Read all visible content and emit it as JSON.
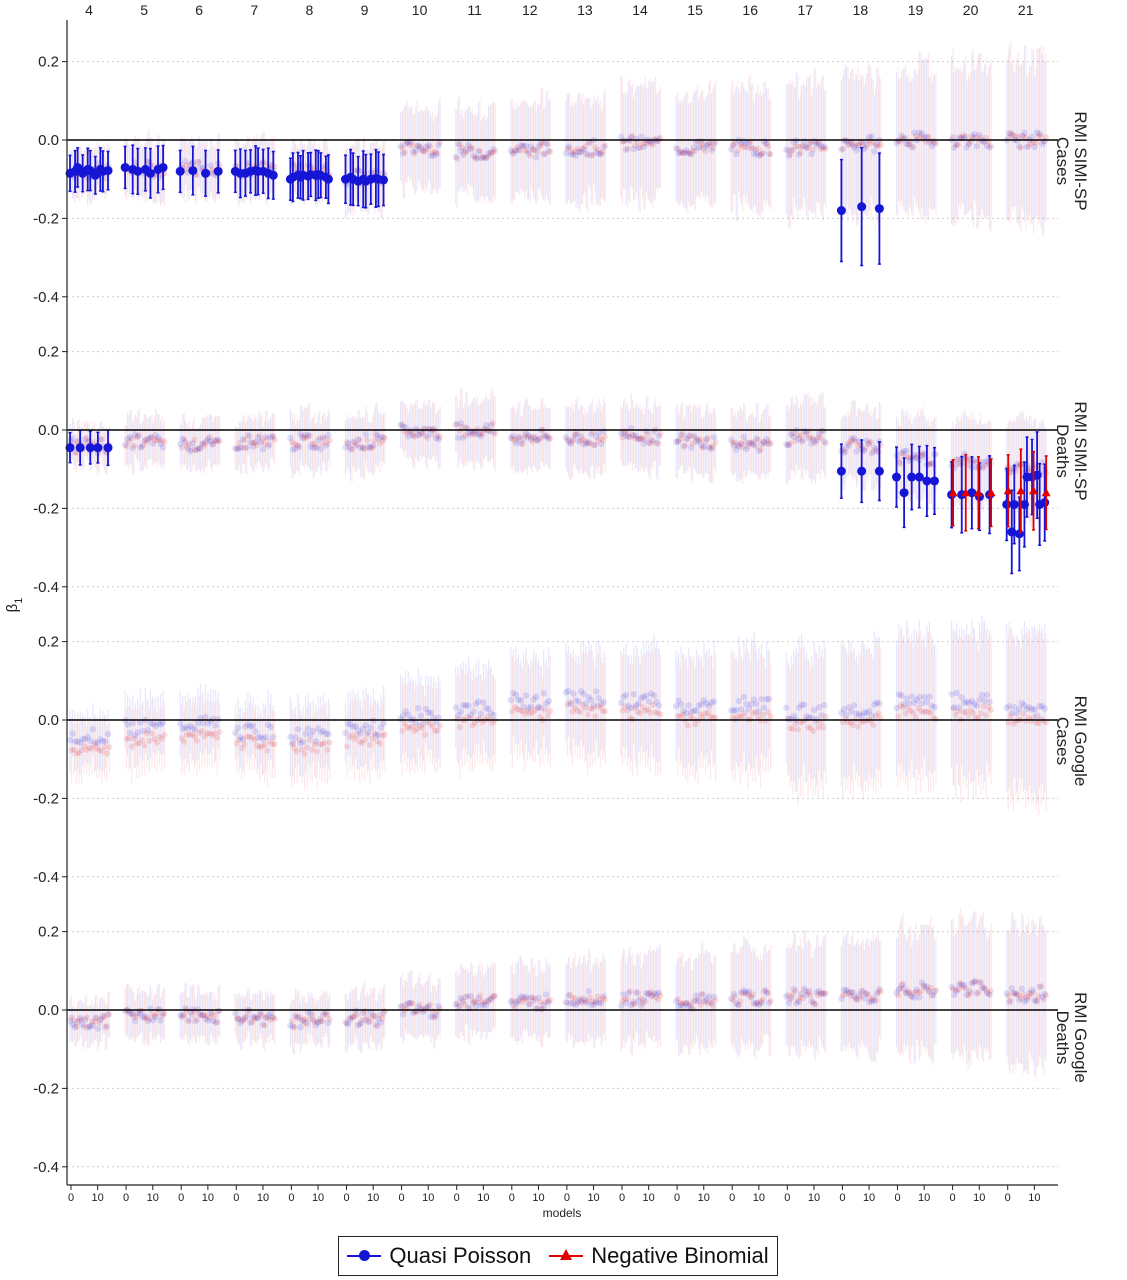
{
  "chart_data": {
    "type": "scatter",
    "title": "",
    "xlabel": "models",
    "ylabel": "β1",
    "x_ticks": [
      "0",
      "10"
    ],
    "facet_columns": [
      "4",
      "5",
      "6",
      "7",
      "8",
      "9",
      "10",
      "11",
      "12",
      "13",
      "14",
      "15",
      "16",
      "17",
      "18",
      "19",
      "20",
      "21"
    ],
    "facet_rows": [
      "RMI SIMI-SP Cases",
      "RMI SIMI-SP Deaths",
      "RMI Google Cases",
      "RMI Google Deaths"
    ],
    "y_ticks": [
      0.2,
      0.0,
      -0.2,
      -0.4
    ],
    "y_tick_labels": [
      "0.2",
      "0.0",
      "-0.2",
      "-0.4"
    ],
    "ylim": [
      -0.42,
      0.3
    ],
    "legend_position": "bottom",
    "grid": "horizontal dotted",
    "colors": {
      "quasi_poisson": "#1515d6",
      "negative_binomial": "#e00000",
      "zero_line": "#000000",
      "grid": "#cccccc"
    },
    "series": [
      {
        "name": "Quasi Poisson",
        "marker": "circle"
      },
      {
        "name": "Negative Binomial",
        "marker": "triangle"
      }
    ],
    "panel_level": {
      "RMI SIMI-SP Cases": [
        -0.08,
        -0.075,
        -0.07,
        -0.075,
        -0.08,
        -0.095,
        -0.02,
        -0.03,
        -0.025,
        -0.02,
        -0.01,
        -0.02,
        -0.02,
        -0.02,
        -0.01,
        0.0,
        0.0,
        0.0
      ],
      "RMI SIMI-SP Deaths": [
        -0.04,
        -0.03,
        -0.035,
        -0.03,
        -0.03,
        -0.03,
        -0.005,
        0.0,
        -0.02,
        -0.02,
        -0.015,
        -0.03,
        -0.035,
        -0.02,
        -0.04,
        -0.07,
        -0.08,
        -0.1
      ],
      "RMI Google Cases": [
        -0.04,
        -0.02,
        -0.01,
        -0.03,
        -0.04,
        -0.02,
        0.01,
        0.03,
        0.05,
        0.055,
        0.05,
        0.035,
        0.04,
        0.02,
        0.03,
        0.05,
        0.05,
        0.03
      ],
      "RMI Google Deaths": [
        -0.03,
        -0.01,
        -0.015,
        -0.02,
        -0.025,
        -0.02,
        0.0,
        0.025,
        0.02,
        0.03,
        0.03,
        0.02,
        0.03,
        0.035,
        0.04,
        0.05,
        0.055,
        0.04
      ]
    },
    "panel_halfwidth": {
      "RMI SIMI-SP Cases": [
        0.06,
        0.07,
        0.07,
        0.07,
        0.07,
        0.08,
        0.1,
        0.11,
        0.12,
        0.13,
        0.14,
        0.14,
        0.15,
        0.16,
        0.17,
        0.18,
        0.19,
        0.2
      ],
      "RMI SIMI-SP Deaths": [
        0.05,
        0.06,
        0.06,
        0.06,
        0.07,
        0.07,
        0.07,
        0.08,
        0.08,
        0.08,
        0.08,
        0.08,
        0.08,
        0.09,
        0.09,
        0.1,
        0.11,
        0.12
      ],
      "RMI Google Cases": [
        0.07,
        0.08,
        0.08,
        0.08,
        0.09,
        0.09,
        0.1,
        0.11,
        0.12,
        0.13,
        0.14,
        0.14,
        0.15,
        0.16,
        0.17,
        0.18,
        0.19,
        0.2
      ],
      "RMI Google Deaths": [
        0.05,
        0.06,
        0.06,
        0.06,
        0.06,
        0.07,
        0.07,
        0.08,
        0.09,
        0.1,
        0.11,
        0.11,
        0.12,
        0.13,
        0.14,
        0.15,
        0.16,
        0.17
      ]
    },
    "highlighted_points": [
      {
        "panel": "RMI SIMI-SP Cases",
        "column": "4",
        "series": "Quasi Poisson",
        "y": [
          -0.085,
          -0.08,
          -0.07,
          -0.085,
          -0.075,
          -0.078,
          -0.09,
          -0.075,
          -0.08,
          -0.078
        ]
      },
      {
        "panel": "RMI SIMI-SP Cases",
        "column": "5",
        "series": "Quasi Poisson",
        "y": [
          -0.07,
          -0.075,
          -0.08,
          -0.075,
          -0.085,
          -0.075,
          -0.07
        ]
      },
      {
        "panel": "RMI SIMI-SP Cases",
        "column": "6",
        "series": "Quasi Poisson",
        "y": [
          -0.08,
          -0.078,
          -0.085,
          -0.08
        ]
      },
      {
        "panel": "RMI SIMI-SP Cases",
        "column": "7",
        "series": "Quasi Poisson",
        "y": [
          -0.08,
          -0.085,
          -0.085,
          -0.08,
          -0.078,
          -0.08,
          -0.08,
          -0.085,
          -0.09
        ]
      },
      {
        "panel": "RMI SIMI-SP Cases",
        "column": "8",
        "series": "Quasi Poisson",
        "y": [
          -0.1,
          -0.095,
          -0.09,
          -0.095,
          -0.09,
          -0.092,
          -0.088,
          -0.09,
          -0.088,
          -0.09,
          -0.095,
          -0.1
        ]
      },
      {
        "panel": "RMI SIMI-SP Cases",
        "column": "9",
        "series": "Quasi Poisson",
        "y": [
          -0.1,
          -0.095,
          -0.1,
          -0.105,
          -0.1,
          -0.105,
          -0.1,
          -0.098,
          -0.1,
          -0.102
        ]
      },
      {
        "panel": "RMI SIMI-SP Cases",
        "column": "18",
        "series": "Quasi Poisson",
        "y": [
          -0.18,
          -0.17,
          -0.175
        ]
      },
      {
        "panel": "RMI SIMI-SP Deaths",
        "column": "4",
        "series": "Quasi Poisson",
        "y": [
          -0.045,
          -0.045,
          -0.045,
          -0.045,
          -0.045
        ]
      },
      {
        "panel": "RMI SIMI-SP Deaths",
        "column": "18",
        "series": "Quasi Poisson",
        "y": [
          -0.105,
          -0.105,
          -0.105
        ]
      },
      {
        "panel": "RMI SIMI-SP Deaths",
        "column": "19",
        "series": "Quasi Poisson",
        "y": [
          -0.12,
          -0.16,
          -0.12,
          -0.12,
          -0.13,
          -0.13
        ]
      },
      {
        "panel": "RMI SIMI-SP Deaths",
        "column": "20",
        "series": "Quasi Poisson",
        "y": [
          -0.165,
          -0.165,
          -0.16,
          -0.17,
          -0.165
        ]
      },
      {
        "panel": "RMI SIMI-SP Deaths",
        "column": "20",
        "series": "Negative Binomial",
        "y": [
          -0.16,
          -0.16,
          -0.16,
          -0.16
        ]
      },
      {
        "panel": "RMI SIMI-SP Deaths",
        "column": "21",
        "series": "Quasi Poisson",
        "y": [
          -0.19,
          -0.26,
          -0.19,
          -0.265,
          -0.19,
          -0.12,
          -0.12,
          -0.115,
          -0.19,
          -0.185
        ]
      },
      {
        "panel": "RMI SIMI-SP Deaths",
        "column": "21",
        "series": "Negative Binomial",
        "y": [
          -0.155,
          -0.155,
          -0.155,
          -0.16
        ]
      }
    ]
  }
}
